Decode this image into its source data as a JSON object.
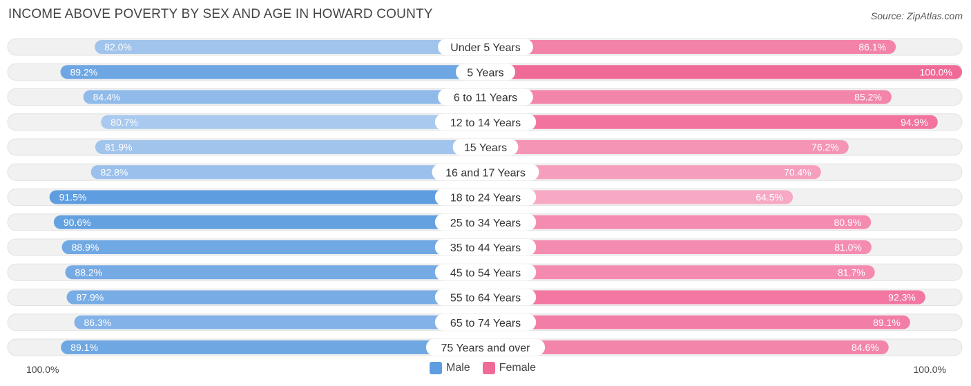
{
  "title": "INCOME ABOVE POVERTY BY SEX AND AGE IN HOWARD COUNTY",
  "source": "Source: ZipAtlas.com",
  "legend": {
    "male": "Male",
    "female": "Female"
  },
  "axis": {
    "left": "100.0%",
    "right": "100.0%"
  },
  "colors": {
    "male_dark": "#5e9de0",
    "male_light": "#a9c9ee",
    "female_dark": "#f06a98",
    "female_light": "#f7a8c4",
    "row_bg": "#f1f1f1",
    "row_border": "#e2e2e2"
  },
  "chart_data": {
    "type": "bar",
    "orientation": "horizontal-diverging",
    "title": "INCOME ABOVE POVERTY BY SEX AND AGE IN HOWARD COUNTY",
    "xlim": [
      -100,
      100
    ],
    "categories": [
      "Under 5 Years",
      "5 Years",
      "6 to 11 Years",
      "12 to 14 Years",
      "15 Years",
      "16 and 17 Years",
      "18 to 24 Years",
      "25 to 34 Years",
      "35 to 44 Years",
      "45 to 54 Years",
      "55 to 64 Years",
      "65 to 74 Years",
      "75 Years and over"
    ],
    "series": [
      {
        "name": "Male",
        "values": [
          82.0,
          89.2,
          84.4,
          80.7,
          81.9,
          82.8,
          91.5,
          90.6,
          88.9,
          88.2,
          87.9,
          86.3,
          89.1
        ],
        "labels": [
          "82.0%",
          "89.2%",
          "84.4%",
          "80.7%",
          "81.9%",
          "82.8%",
          "91.5%",
          "90.6%",
          "88.9%",
          "88.2%",
          "87.9%",
          "86.3%",
          "89.1%"
        ]
      },
      {
        "name": "Female",
        "values": [
          86.1,
          100.0,
          85.2,
          94.9,
          76.2,
          70.4,
          64.5,
          80.9,
          81.0,
          81.7,
          92.3,
          89.1,
          84.6
        ],
        "labels": [
          "86.1%",
          "100.0%",
          "85.2%",
          "94.9%",
          "76.2%",
          "70.4%",
          "64.5%",
          "80.9%",
          "81.0%",
          "81.7%",
          "92.3%",
          "89.1%",
          "84.6%"
        ]
      }
    ]
  }
}
